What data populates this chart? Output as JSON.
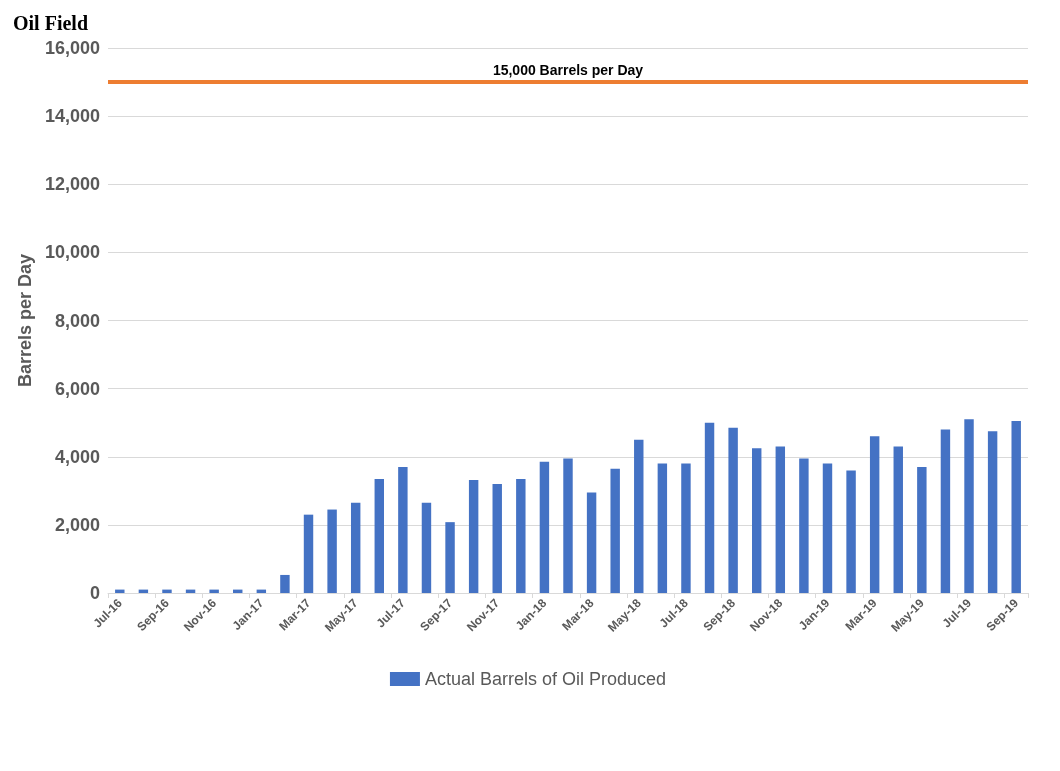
{
  "chart_data": {
    "type": "bar",
    "title": "Oil Field",
    "ylabel": "Barrels per Day",
    "categories": [
      "Jul-16",
      null,
      "Sep-16",
      null,
      "Nov-16",
      null,
      "Jan-17",
      null,
      "Mar-17",
      null,
      "May-17",
      null,
      "Jul-17",
      null,
      "Sep-17",
      null,
      "Nov-17",
      null,
      "Jan-18",
      null,
      "Mar-18",
      null,
      "May-18",
      null,
      "Jul-18",
      null,
      "Sep-18",
      null,
      "Nov-18",
      null,
      "Jan-19",
      null,
      "Mar-19",
      null,
      "May-19",
      null,
      "Jul-19",
      null,
      "Sep-19"
    ],
    "series": [
      {
        "name": "Actual Barrels of Oil Produced",
        "color": "#4472c4",
        "values": [
          100,
          100,
          100,
          100,
          100,
          100,
          100,
          530,
          2300,
          2450,
          2650,
          3350,
          3700,
          2650,
          2080,
          3320,
          3200,
          3350,
          3850,
          3950,
          2950,
          3650,
          4500,
          3800,
          3800,
          5000,
          4850,
          4250,
          4300,
          3950,
          3800,
          3600,
          4600,
          4300,
          3700,
          4800,
          5100,
          4750,
          5050
        ]
      }
    ],
    "ylim": [
      0,
      16000
    ],
    "yticks": [
      0,
      {
        "value": 2000,
        "label": "2,000"
      },
      {
        "value": 4000,
        "label": "4,000"
      },
      {
        "value": 6000,
        "label": "6,000"
      },
      {
        "value": 8000,
        "label": "8,000"
      },
      {
        "value": 10000,
        "label": "10,000"
      },
      {
        "value": 12000,
        "label": "12,000"
      },
      {
        "value": 14000,
        "label": "14,000"
      },
      {
        "value": 16000,
        "label": "16,000"
      }
    ],
    "ref_lines": [
      {
        "axis": "y",
        "value": 15000,
        "label": "15,000 Barrels per Day",
        "color": "#ed7d31"
      }
    ],
    "grid": "y",
    "legend": "bottom"
  }
}
